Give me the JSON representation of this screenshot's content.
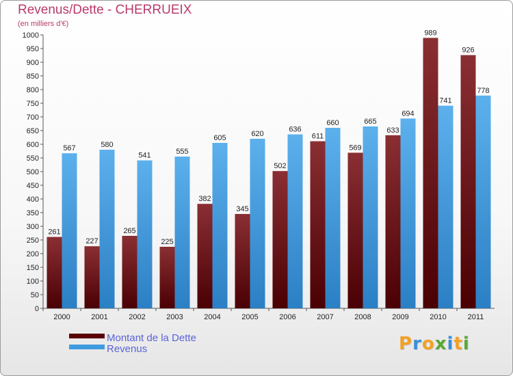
{
  "chart_data": {
    "type": "bar",
    "title": "Revenus/Dette - CHERRUEIX",
    "subtitle": "(en milliers d'€)",
    "categories": [
      "2000",
      "2001",
      "2002",
      "2003",
      "2004",
      "2005",
      "2006",
      "2007",
      "2008",
      "2009",
      "2010",
      "2011"
    ],
    "series": [
      {
        "name": "Montant de la Dette",
        "color": "#6b0f12",
        "values": [
          261,
          227,
          265,
          225,
          382,
          345,
          502,
          611,
          569,
          633,
          989,
          926
        ]
      },
      {
        "name": "Revenus",
        "color": "#3f9be0",
        "values": [
          567,
          580,
          541,
          555,
          605,
          620,
          636,
          660,
          665,
          694,
          741,
          778
        ]
      }
    ],
    "ylim": [
      0,
      1000
    ],
    "ytick_step": 50,
    "grid": false,
    "legend_position": "bottom-left"
  },
  "logo": {
    "letters": [
      "P",
      "r",
      "o",
      "x",
      "i",
      "t",
      "i"
    ],
    "colors": [
      "#f2a126",
      "#3a8fd6",
      "#f2a126",
      "#5aa832",
      "#3a8fd6",
      "#f2a126",
      "#5aa832"
    ]
  }
}
